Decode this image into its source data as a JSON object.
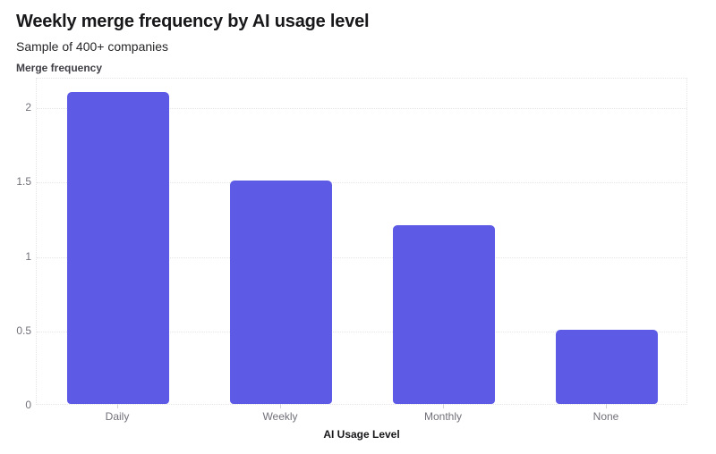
{
  "chart_data": {
    "type": "bar",
    "title": "Weekly merge frequency by AI usage level",
    "subtitle": "Sample of 400+ companies",
    "xlabel": "AI Usage Level",
    "ylabel": "Merge frequency",
    "categories": [
      "Daily",
      "Weekly",
      "Monthly",
      "None"
    ],
    "values": [
      2.1,
      1.5,
      1.2,
      0.5
    ],
    "ylim": [
      0,
      2.2
    ],
    "yticks": [
      0,
      0.5,
      1,
      1.5,
      2
    ],
    "grid": "horizontal-dotted",
    "legend": "none",
    "bar_color": "#5d5be6"
  },
  "colors": {
    "background": "#ffffff",
    "bar": "#5d5be6",
    "grid": "#e4e4e7",
    "tick_label": "#71717a",
    "tick_mark": "#d4d4d8",
    "title": "#18181b",
    "subtitle": "#27272a",
    "axis_title": "#18181b"
  }
}
